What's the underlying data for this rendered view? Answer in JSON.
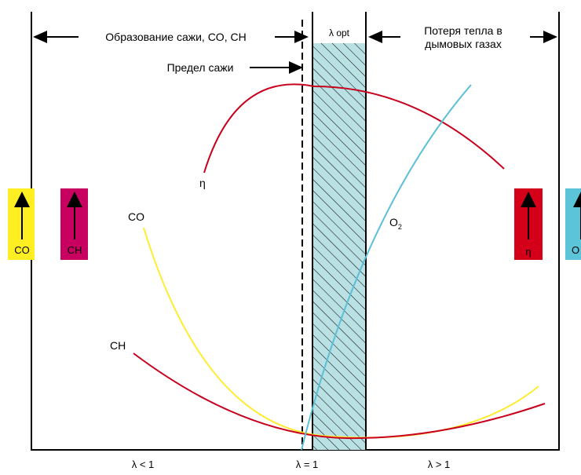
{
  "header": {
    "left_label": "Образование сажи, CO, CH",
    "lambda_opt": "λ opt",
    "right_label_line1": "Потеря тепла в",
    "right_label_line2": "дымовых газах",
    "soot_limit": "Предел сажи"
  },
  "curves": {
    "eta": "η",
    "co": "CO",
    "ch": "CH",
    "o2_base": "O",
    "o2_sub": "2"
  },
  "indicators": {
    "co": "CO",
    "ch": "CH",
    "eta": "η",
    "o2": "O"
  },
  "x_axis": {
    "lt1": "λ < 1",
    "eq1": "λ = 1",
    "gt1": "λ > 1"
  },
  "colors": {
    "yellow": "#ffee22",
    "magenta": "#c8005f",
    "red": "#d4001a",
    "cyan": "#5bc4d8",
    "eta_curve": "#c8001e",
    "co_curve": "#ffec30",
    "o2_curve": "#5bbfd8",
    "hatch_fill": "#b9e0e3"
  }
}
